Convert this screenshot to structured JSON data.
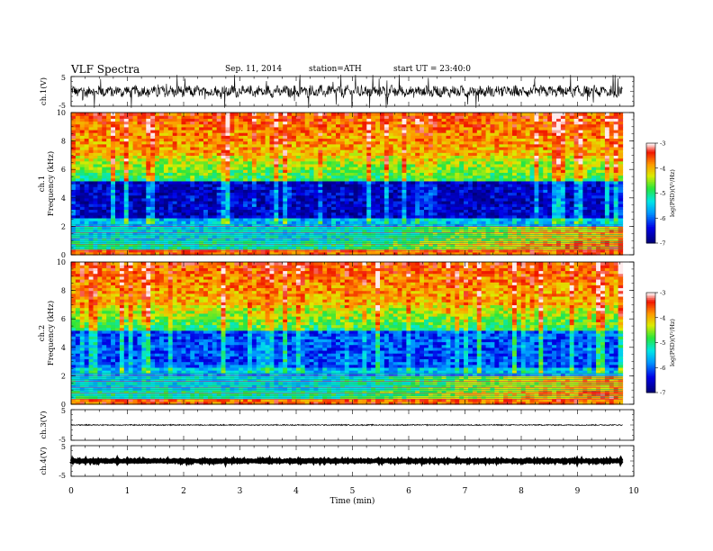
{
  "header": {
    "title": "VLF Spectra",
    "date": "Sep. 11, 2014",
    "station": "station=ATH",
    "start": "start  UT =  23:40:0"
  },
  "chart_data": {
    "type": "heatmap",
    "x_axis": {
      "label": "Time (min)",
      "range": [
        0,
        10
      ],
      "ticks": [
        "0",
        "1",
        "2",
        "3",
        "4",
        "5",
        "6",
        "7",
        "8",
        "9",
        "10"
      ]
    },
    "panels": [
      {
        "id": "ch1-waveform",
        "type": "line",
        "ylabel": "ch.1(V)",
        "y_ticks": [
          "5",
          "-5"
        ],
        "ylim": [
          -5,
          5
        ],
        "signal": "noisy waveform around 0 V with impulsive spikes",
        "data_end_min": 9.8
      },
      {
        "id": "ch1-spectrogram",
        "type": "heatmap",
        "ylabel": "ch.1\nFrequency (kHz)",
        "ylabel_lines": [
          "ch.1",
          "Frequency (kHz)"
        ],
        "y_ticks": [
          "0",
          "2",
          "4",
          "6",
          "8",
          "10"
        ],
        "ylim": [
          0,
          10
        ],
        "data_end_min": 9.8,
        "features": [
          {
            "freq_khz": [
              0.5,
              2.0
            ],
            "level": "strong, rising in intensity after 5 min, red by 8-9.8 min"
          },
          {
            "freq_khz": [
              2.2,
              5.0
            ],
            "level": "low (blue) with vertical sferic streaks"
          },
          {
            "freq_khz": [
              5.0,
              7.0
            ],
            "level": "medium (green-yellow)"
          },
          {
            "freq_khz": [
              7.0,
              10.0
            ],
            "level": "high (orange-red)"
          }
        ],
        "colorbar": {
          "label": "log(PSD)(V²/Hz)",
          "ticks": [
            "-3",
            "-4",
            "-5",
            "-6",
            "-7"
          ],
          "range": [
            -7,
            -3
          ]
        }
      },
      {
        "id": "ch2-spectrogram",
        "type": "heatmap",
        "ylabel": "ch.2\nFrequency (kHz)",
        "ylabel_lines": [
          "ch.2",
          "Frequency (kHz)"
        ],
        "y_ticks": [
          "0",
          "2",
          "4",
          "6",
          "8",
          "10"
        ],
        "ylim": [
          0,
          10
        ],
        "data_end_min": 9.8,
        "features": [
          {
            "freq_khz": [
              0.5,
              2.0
            ],
            "level": "strong, rising in intensity after 5 min"
          },
          {
            "freq_khz": [
              3.0,
              5.0
            ],
            "level": "low (blue) horizontal band"
          },
          {
            "freq_khz": [
              5.0,
              7.0
            ],
            "level": "medium (green-yellow)"
          },
          {
            "freq_khz": [
              7.0,
              10.0
            ],
            "level": "high (orange-red)"
          }
        ],
        "colorbar": {
          "label": "log(PSD)(V²/Hz)",
          "ticks": [
            "-3",
            "-4",
            "-5",
            "-6",
            "-7"
          ],
          "range": [
            -7,
            -3
          ]
        }
      },
      {
        "id": "ch3-waveform",
        "type": "line",
        "ylabel": "ch.3(V)",
        "y_ticks": [
          "5",
          "-5"
        ],
        "ylim": [
          -5,
          5
        ],
        "signal": "flat line near 0 V",
        "data_end_min": 9.8
      },
      {
        "id": "ch4-waveform",
        "type": "line",
        "ylabel": "ch.4(V)",
        "y_ticks": [
          "5",
          "-5"
        ],
        "ylim": [
          -5,
          5
        ],
        "signal": "thick flat line near 0 V",
        "data_end_min": 9.8
      }
    ]
  }
}
